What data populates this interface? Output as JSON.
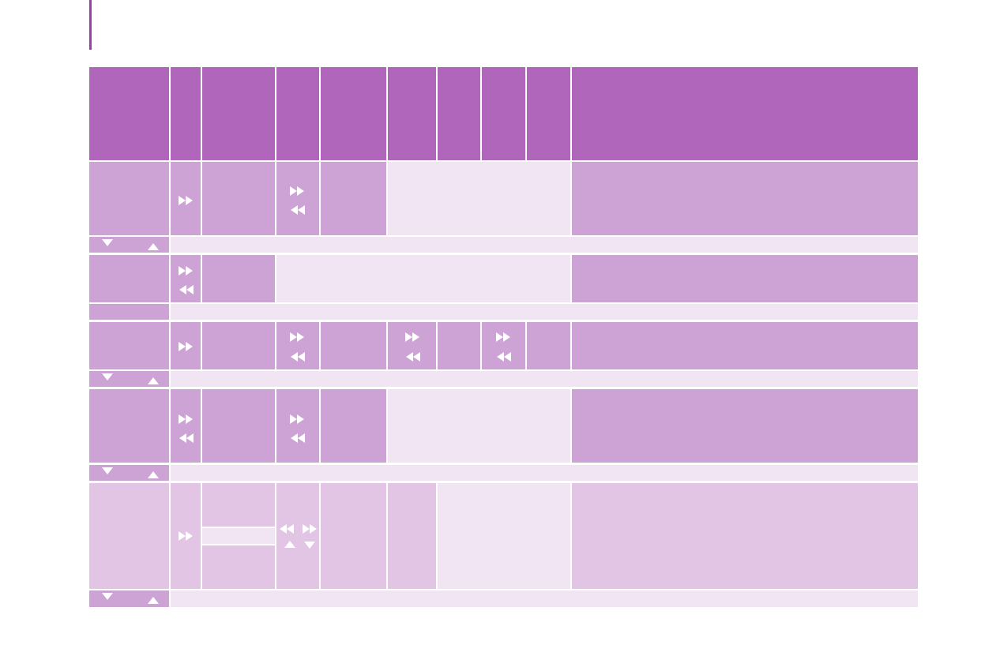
{
  "colors": {
    "accent": "#9b3fa8",
    "header": "#b066bb",
    "cell": "#cda3d5",
    "pale": "#f1e5f3",
    "soft": "#e2c4e5"
  },
  "icons": {
    "forward": "fast-forward-icon",
    "rewind": "rewind-icon",
    "down": "triangle-down-icon",
    "up": "triangle-up-icon"
  }
}
